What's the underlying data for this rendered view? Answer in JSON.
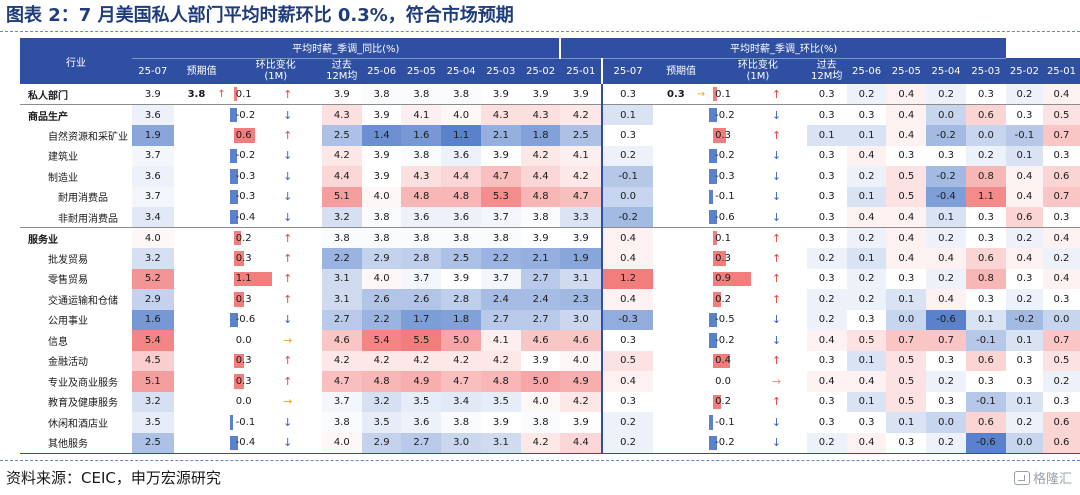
{
  "title": "图表 2：7 月美国私人部门平均时薪环比 0.3%，符合市场预期",
  "source": "资料来源：CEIC，申万宏源研究",
  "logo": "格隆汇",
  "colors": {
    "header_bg": "#2f4fa2",
    "red_strong": "#f27d7d",
    "blue_strong": "#5a82cc"
  },
  "header": {
    "industry": "行业",
    "yoy_group": "平均时薪_季调_同比(%)",
    "mom_group": "平均时薪_季调_环比(%)",
    "latest": "25-07",
    "forecast": "预期值",
    "change_l1": "环比变化",
    "change_l2": "(1M)",
    "avg_l1": "过去",
    "avg_l2": "12M均",
    "months": [
      "25-06",
      "25-05",
      "25-04",
      "25-03",
      "25-02",
      "25-01"
    ]
  },
  "rows": [
    {
      "name": "私人部门",
      "level": 0,
      "yoy": {
        "latest": "3.9",
        "forecast": "3.8",
        "forecast_dir": "up",
        "change": "0.1",
        "change_dir": "up",
        "avg": "3.9",
        "history": [
          "3.8",
          "3.8",
          "3.8",
          "3.9",
          "3.9",
          "3.9"
        ]
      },
      "mom": {
        "latest": "0.3",
        "forecast": "0.3",
        "forecast_dir": "flat",
        "change": "0.1",
        "change_dir": "up",
        "avg": "0.3",
        "history": [
          "0.2",
          "0.4",
          "0.2",
          "0.3",
          "0.2",
          "0.4"
        ]
      }
    },
    {
      "name": "商品生产",
      "level": 0,
      "yoy": {
        "latest": "3.6",
        "forecast": "",
        "forecast_dir": "",
        "change": "-0.2",
        "change_dir": "down",
        "avg": "4.3",
        "history": [
          "3.9",
          "4.1",
          "4.0",
          "4.3",
          "4.3",
          "4.2"
        ]
      },
      "mom": {
        "latest": "0.1",
        "forecast": "",
        "forecast_dir": "",
        "change": "-0.2",
        "change_dir": "down",
        "avg": "0.3",
        "history": [
          "0.3",
          "0.4",
          "0.0",
          "0.6",
          "0.3",
          "0.5"
        ]
      }
    },
    {
      "name": "自然资源和采矿业",
      "level": 1,
      "yoy": {
        "latest": "1.9",
        "forecast": "",
        "forecast_dir": "",
        "change": "0.6",
        "change_dir": "up",
        "avg": "2.5",
        "history": [
          "1.4",
          "1.6",
          "1.1",
          "2.1",
          "1.8",
          "2.5"
        ]
      },
      "mom": {
        "latest": "0.3",
        "forecast": "",
        "forecast_dir": "",
        "change": "0.3",
        "change_dir": "up",
        "avg": "0.1",
        "history": [
          "0.1",
          "0.4",
          "-0.2",
          "0.0",
          "-0.1",
          "0.7"
        ]
      }
    },
    {
      "name": "建筑业",
      "level": 1,
      "yoy": {
        "latest": "3.7",
        "forecast": "",
        "forecast_dir": "",
        "change": "-0.2",
        "change_dir": "down",
        "avg": "4.2",
        "history": [
          "3.9",
          "3.8",
          "3.6",
          "3.9",
          "4.2",
          "4.1"
        ]
      },
      "mom": {
        "latest": "0.2",
        "forecast": "",
        "forecast_dir": "",
        "change": "-0.2",
        "change_dir": "down",
        "avg": "0.3",
        "history": [
          "0.4",
          "0.3",
          "0.3",
          "0.2",
          "0.1",
          "0.3"
        ]
      }
    },
    {
      "name": "制造业",
      "level": 1,
      "yoy": {
        "latest": "3.6",
        "forecast": "",
        "forecast_dir": "",
        "change": "-0.3",
        "change_dir": "down",
        "avg": "4.4",
        "history": [
          "3.9",
          "4.3",
          "4.4",
          "4.7",
          "4.4",
          "4.2"
        ]
      },
      "mom": {
        "latest": "-0.1",
        "forecast": "",
        "forecast_dir": "",
        "change": "-0.3",
        "change_dir": "down",
        "avg": "0.3",
        "history": [
          "0.2",
          "0.5",
          "-0.2",
          "0.8",
          "0.4",
          "0.6"
        ]
      }
    },
    {
      "name": "耐用消费品",
      "level": 2,
      "yoy": {
        "latest": "3.7",
        "forecast": "",
        "forecast_dir": "",
        "change": "-0.3",
        "change_dir": "down",
        "avg": "5.1",
        "history": [
          "4.0",
          "4.8",
          "4.8",
          "5.3",
          "4.8",
          "4.7"
        ]
      },
      "mom": {
        "latest": "0.0",
        "forecast": "",
        "forecast_dir": "",
        "change": "-0.1",
        "change_dir": "down",
        "avg": "0.3",
        "history": [
          "0.1",
          "0.5",
          "-0.4",
          "1.1",
          "0.4",
          "0.7"
        ]
      }
    },
    {
      "name": "非耐用消费品",
      "level": 2,
      "yoy": {
        "latest": "3.4",
        "forecast": "",
        "forecast_dir": "",
        "change": "-0.4",
        "change_dir": "down",
        "avg": "3.2",
        "history": [
          "3.8",
          "3.6",
          "3.6",
          "3.7",
          "3.8",
          "3.3"
        ]
      },
      "mom": {
        "latest": "-0.2",
        "forecast": "",
        "forecast_dir": "",
        "change": "-0.6",
        "change_dir": "down",
        "avg": "0.3",
        "history": [
          "0.4",
          "0.4",
          "0.1",
          "0.3",
          "0.6",
          "0.3"
        ]
      }
    },
    {
      "name": "服务业",
      "level": 0,
      "yoy": {
        "latest": "4.0",
        "forecast": "",
        "forecast_dir": "",
        "change": "0.2",
        "change_dir": "up",
        "avg": "3.8",
        "history": [
          "3.8",
          "3.8",
          "3.8",
          "3.8",
          "3.9",
          "3.9"
        ]
      },
      "mom": {
        "latest": "0.4",
        "forecast": "",
        "forecast_dir": "",
        "change": "0.1",
        "change_dir": "up",
        "avg": "0.3",
        "history": [
          "0.2",
          "0.4",
          "0.2",
          "0.3",
          "0.2",
          "0.4"
        ]
      }
    },
    {
      "name": "批发贸易",
      "level": 1,
      "yoy": {
        "latest": "3.2",
        "forecast": "",
        "forecast_dir": "",
        "change": "0.3",
        "change_dir": "up",
        "avg": "2.2",
        "history": [
          "2.9",
          "2.8",
          "2.5",
          "2.2",
          "2.1",
          "1.9"
        ]
      },
      "mom": {
        "latest": "0.4",
        "forecast": "",
        "forecast_dir": "",
        "change": "0.3",
        "change_dir": "up",
        "avg": "0.2",
        "history": [
          "0.1",
          "0.4",
          "0.4",
          "0.6",
          "0.4",
          "0.2"
        ]
      }
    },
    {
      "name": "零售贸易",
      "level": 1,
      "yoy": {
        "latest": "5.2",
        "forecast": "",
        "forecast_dir": "",
        "change": "1.1",
        "change_dir": "up",
        "avg": "3.1",
        "history": [
          "4.0",
          "3.7",
          "3.9",
          "3.7",
          "2.7",
          "3.1"
        ]
      },
      "mom": {
        "latest": "1.2",
        "forecast": "",
        "forecast_dir": "",
        "change": "0.9",
        "change_dir": "up",
        "avg": "0.3",
        "history": [
          "0.2",
          "0.3",
          "0.2",
          "0.8",
          "0.3",
          "0.4"
        ]
      }
    },
    {
      "name": "交通运输和仓储",
      "level": 1,
      "yoy": {
        "latest": "2.9",
        "forecast": "",
        "forecast_dir": "",
        "change": "0.3",
        "change_dir": "up",
        "avg": "3.1",
        "history": [
          "2.6",
          "2.6",
          "2.8",
          "2.4",
          "2.4",
          "2.3"
        ]
      },
      "mom": {
        "latest": "0.4",
        "forecast": "",
        "forecast_dir": "",
        "change": "0.2",
        "change_dir": "up",
        "avg": "0.2",
        "history": [
          "0.2",
          "0.1",
          "0.4",
          "0.3",
          "0.2",
          "0.3"
        ]
      }
    },
    {
      "name": "公用事业",
      "level": 1,
      "yoy": {
        "latest": "1.6",
        "forecast": "",
        "forecast_dir": "",
        "change": "-0.6",
        "change_dir": "down",
        "avg": "2.7",
        "history": [
          "2.2",
          "1.7",
          "1.8",
          "2.7",
          "2.7",
          "3.0"
        ]
      },
      "mom": {
        "latest": "-0.3",
        "forecast": "",
        "forecast_dir": "",
        "change": "-0.5",
        "change_dir": "down",
        "avg": "0.2",
        "history": [
          "0.3",
          "0.0",
          "-0.6",
          "0.1",
          "-0.2",
          "0.0"
        ]
      }
    },
    {
      "name": "信息",
      "level": 1,
      "yoy": {
        "latest": "5.4",
        "forecast": "",
        "forecast_dir": "",
        "change": "0.0",
        "change_dir": "flat",
        "avg": "4.6",
        "history": [
          "5.4",
          "5.5",
          "5.0",
          "4.1",
          "4.6",
          "4.6"
        ]
      },
      "mom": {
        "latest": "0.3",
        "forecast": "",
        "forecast_dir": "",
        "change": "-0.2",
        "change_dir": "down",
        "avg": "0.4",
        "history": [
          "0.5",
          "0.7",
          "0.7",
          "-0.1",
          "0.1",
          "0.7"
        ]
      }
    },
    {
      "name": "金融活动",
      "level": 1,
      "yoy": {
        "latest": "4.5",
        "forecast": "",
        "forecast_dir": "",
        "change": "0.3",
        "change_dir": "up",
        "avg": "4.2",
        "history": [
          "4.2",
          "4.2",
          "4.2",
          "4.2",
          "3.9",
          "4.0"
        ]
      },
      "mom": {
        "latest": "0.5",
        "forecast": "",
        "forecast_dir": "",
        "change": "0.4",
        "change_dir": "up",
        "avg": "0.3",
        "history": [
          "0.1",
          "0.5",
          "0.3",
          "0.6",
          "0.3",
          "0.5"
        ]
      }
    },
    {
      "name": "专业及商业服务",
      "level": 1,
      "yoy": {
        "latest": "5.1",
        "forecast": "",
        "forecast_dir": "",
        "change": "0.3",
        "change_dir": "up",
        "avg": "4.7",
        "history": [
          "4.8",
          "4.9",
          "4.7",
          "4.8",
          "5.0",
          "4.9"
        ]
      },
      "mom": {
        "latest": "0.4",
        "forecast": "",
        "forecast_dir": "",
        "change": "0.0",
        "change_dir": "flat",
        "avg": "0.4",
        "history": [
          "0.4",
          "0.5",
          "0.2",
          "0.3",
          "0.3",
          "0.2"
        ]
      }
    },
    {
      "name": "教育及健康服务",
      "level": 1,
      "yoy": {
        "latest": "3.2",
        "forecast": "",
        "forecast_dir": "",
        "change": "0.0",
        "change_dir": "flat",
        "avg": "3.7",
        "history": [
          "3.2",
          "3.5",
          "3.4",
          "3.5",
          "4.0",
          "4.2"
        ]
      },
      "mom": {
        "latest": "0.3",
        "forecast": "",
        "forecast_dir": "",
        "change": "0.2",
        "change_dir": "up",
        "avg": "0.3",
        "history": [
          "0.1",
          "0.5",
          "0.3",
          "-0.1",
          "0.1",
          "0.3"
        ]
      }
    },
    {
      "name": "休闲和酒店业",
      "level": 1,
      "yoy": {
        "latest": "3.5",
        "forecast": "",
        "forecast_dir": "",
        "change": "-0.1",
        "change_dir": "down",
        "avg": "3.8",
        "history": [
          "3.5",
          "3.6",
          "3.8",
          "3.9",
          "3.8",
          "3.9"
        ]
      },
      "mom": {
        "latest": "0.2",
        "forecast": "",
        "forecast_dir": "",
        "change": "-0.1",
        "change_dir": "down",
        "avg": "0.3",
        "history": [
          "0.3",
          "0.1",
          "0.0",
          "0.6",
          "0.2",
          "0.6"
        ]
      }
    },
    {
      "name": "其他服务",
      "level": 1,
      "yoy": {
        "latest": "2.5",
        "forecast": "",
        "forecast_dir": "",
        "change": "-0.4",
        "change_dir": "down",
        "avg": "4.0",
        "history": [
          "2.9",
          "2.7",
          "3.0",
          "3.1",
          "4.2",
          "4.4"
        ]
      },
      "mom": {
        "latest": "0.2",
        "forecast": "",
        "forecast_dir": "",
        "change": "-0.2",
        "change_dir": "down",
        "avg": "0.2",
        "history": [
          "0.4",
          "0.3",
          "0.2",
          "-0.6",
          "0.0",
          "0.6"
        ]
      }
    }
  ]
}
